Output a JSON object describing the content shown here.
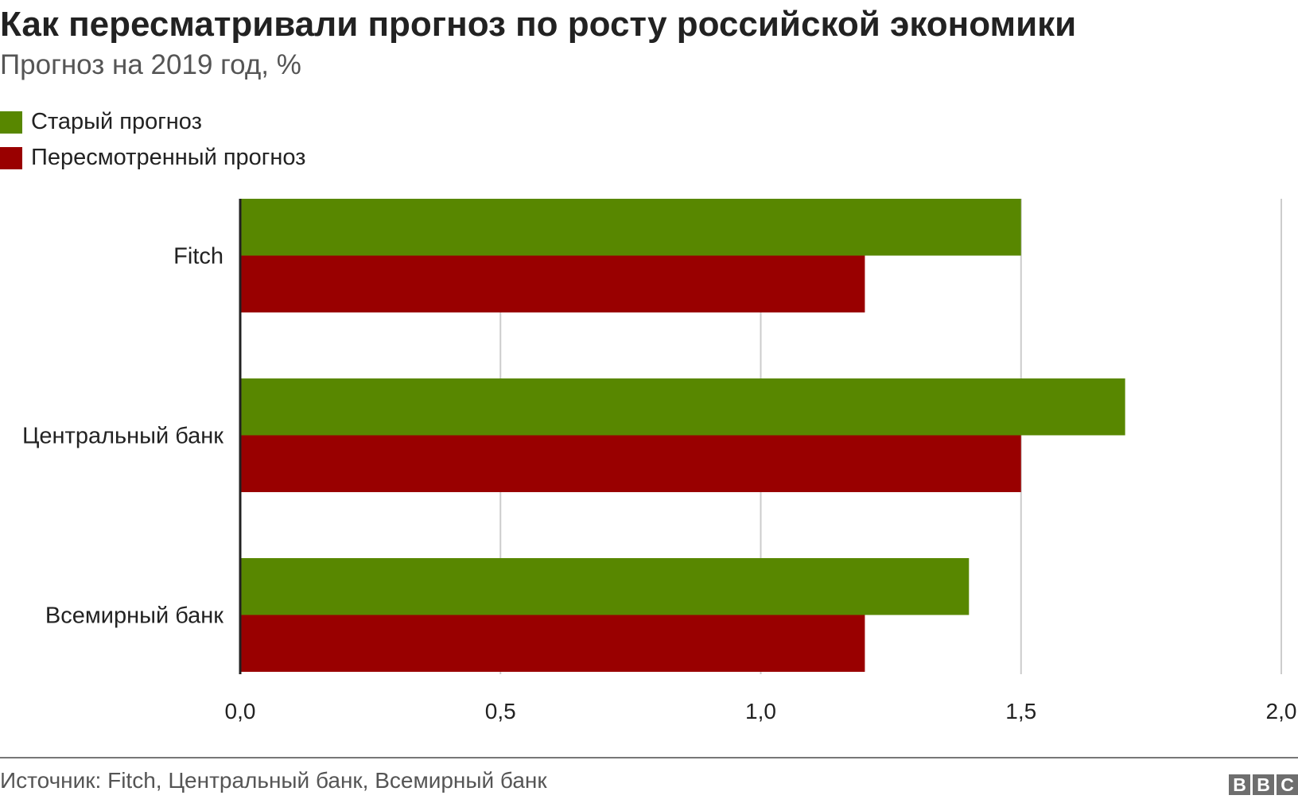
{
  "chart_data": {
    "type": "bar",
    "orientation": "horizontal",
    "title": "Как пересматривали прогноз по росту российской экономики",
    "subtitle": "Прогноз на 2019 год, %",
    "categories": [
      "Fitch",
      "Центральный банк",
      "Всемирный банк"
    ],
    "series": [
      {
        "name": "Старый прогноз",
        "color": "#588700",
        "values": [
          1.5,
          1.7,
          1.4
        ]
      },
      {
        "name": "Пересмотренный прогноз",
        "color": "#990000",
        "values": [
          1.2,
          1.5,
          1.2
        ]
      }
    ],
    "xlim": [
      0,
      2.0
    ],
    "xticks": [
      "0,0",
      "0,5",
      "1,0",
      "1,5",
      "2,0"
    ],
    "grid": true,
    "legend": "top-left"
  },
  "footer": {
    "source": "Источник: Fitch, Центральный банк, Всемирный банк",
    "logo": "BBC"
  }
}
